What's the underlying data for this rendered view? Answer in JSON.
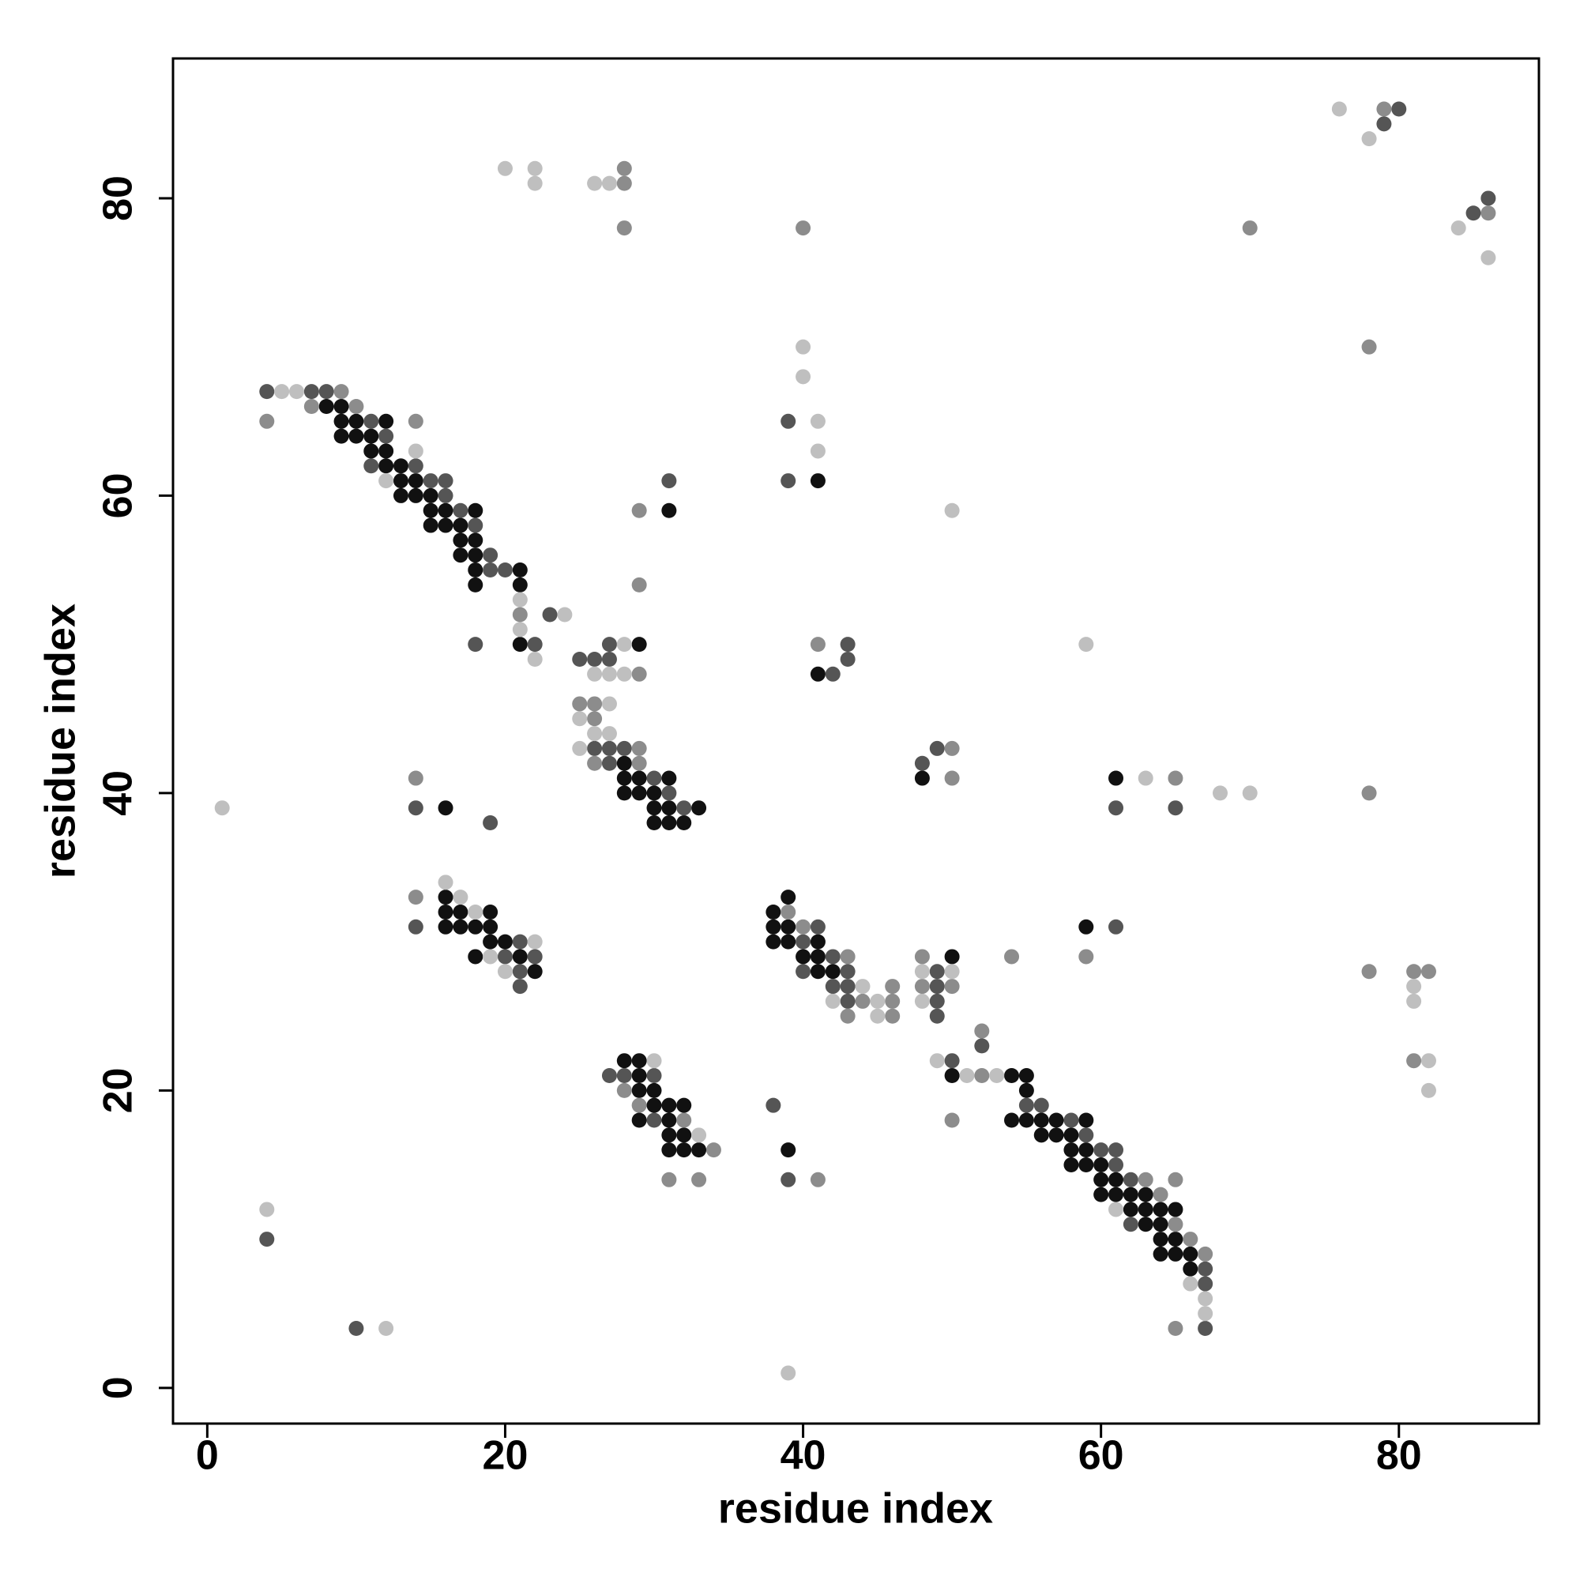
{
  "chart_data": {
    "type": "scatter",
    "xlabel": "residue index",
    "ylabel": "residue index",
    "xlim": [
      -2.3,
      89.4
    ],
    "ylim": [
      -2.4,
      89.4
    ],
    "xticks": [
      0,
      20,
      40,
      60,
      80
    ],
    "yticks": [
      0,
      20,
      40,
      60,
      80
    ],
    "grid": false,
    "series": [
      {
        "color": "#111111",
        "x": [
          8,
          9,
          9,
          10,
          12,
          9,
          10,
          11,
          11,
          12,
          12,
          13,
          13,
          14,
          41,
          13,
          14,
          15,
          15,
          16,
          18,
          31,
          15,
          16,
          17,
          17,
          18,
          17,
          18,
          18,
          21,
          18,
          21,
          21,
          29,
          41,
          28,
          28,
          29,
          31,
          48,
          61,
          28,
          29,
          30,
          30,
          31,
          33,
          16,
          30,
          31,
          32,
          16,
          39,
          16,
          17,
          19,
          38,
          16,
          17,
          18,
          19,
          38,
          39,
          59,
          19,
          20,
          38,
          39,
          41,
          18,
          21,
          40,
          41,
          50,
          22,
          41,
          42,
          28,
          29,
          29,
          50,
          54,
          55,
          29,
          30,
          55,
          30,
          31,
          32,
          29,
          31,
          54,
          55,
          56,
          57,
          59,
          31,
          32,
          56,
          57,
          58,
          31,
          32,
          33,
          39,
          58,
          59,
          58,
          59,
          60,
          60,
          61,
          60,
          61,
          62,
          63,
          62,
          63,
          64,
          65,
          63,
          64,
          64,
          65,
          64,
          65,
          66,
          66
        ],
        "y": [
          66,
          66,
          65,
          65,
          65,
          64,
          64,
          64,
          63,
          63,
          62,
          62,
          61,
          61,
          61,
          60,
          60,
          60,
          59,
          59,
          59,
          59,
          58,
          58,
          58,
          57,
          57,
          56,
          56,
          55,
          55,
          54,
          54,
          50,
          50,
          48,
          42,
          41,
          41,
          41,
          41,
          41,
          40,
          40,
          40,
          39,
          39,
          39,
          39,
          38,
          38,
          38,
          33,
          33,
          32,
          32,
          32,
          32,
          31,
          31,
          31,
          31,
          31,
          31,
          31,
          30,
          30,
          30,
          30,
          30,
          29,
          29,
          29,
          29,
          29,
          28,
          28,
          28,
          22,
          22,
          21,
          21,
          21,
          21,
          20,
          20,
          20,
          19,
          19,
          19,
          18,
          18,
          18,
          18,
          18,
          18,
          18,
          17,
          17,
          17,
          17,
          17,
          16,
          16,
          16,
          16,
          16,
          16,
          15,
          15,
          15,
          14,
          14,
          13,
          13,
          13,
          13,
          12,
          12,
          12,
          12,
          11,
          11,
          10,
          10,
          9,
          9,
          9,
          8
        ]
      },
      {
        "color": "#555555",
        "x": [
          80,
          79,
          85,
          86,
          4,
          7,
          8,
          11,
          39,
          12,
          11,
          14,
          15,
          16,
          39,
          31,
          16,
          17,
          18,
          19,
          19,
          20,
          23,
          18,
          22,
          27,
          43,
          25,
          26,
          27,
          43,
          42,
          26,
          27,
          28,
          49,
          27,
          48,
          30,
          31,
          32,
          14,
          61,
          65,
          19,
          14,
          41,
          61,
          21,
          40,
          20,
          22,
          42,
          21,
          40,
          43,
          49,
          21,
          42,
          43,
          49,
          43,
          49,
          49,
          52,
          50,
          27,
          28,
          30,
          38,
          55,
          56,
          30,
          58,
          59,
          60,
          61,
          61,
          39,
          62,
          62,
          67,
          67,
          10,
          67,
          4
        ],
        "y": [
          86,
          85,
          79,
          80,
          67,
          67,
          67,
          65,
          65,
          64,
          62,
          62,
          61,
          61,
          61,
          61,
          60,
          59,
          58,
          56,
          55,
          55,
          52,
          50,
          50,
          50,
          50,
          49,
          49,
          49,
          49,
          48,
          43,
          43,
          43,
          43,
          42,
          42,
          41,
          40,
          39,
          39,
          39,
          39,
          38,
          31,
          31,
          31,
          30,
          30,
          29,
          29,
          29,
          28,
          28,
          28,
          28,
          27,
          27,
          27,
          27,
          26,
          26,
          25,
          23,
          22,
          21,
          21,
          21,
          19,
          19,
          19,
          18,
          18,
          17,
          16,
          16,
          15,
          14,
          14,
          11,
          8,
          7,
          4,
          4,
          10
        ]
      },
      {
        "color": "#8c8c8c",
        "x": [
          79,
          28,
          28,
          86,
          28,
          40,
          70,
          78,
          9,
          7,
          10,
          4,
          14,
          29,
          29,
          21,
          41,
          29,
          25,
          26,
          26,
          29,
          50,
          26,
          29,
          14,
          50,
          65,
          78,
          14,
          39,
          40,
          43,
          48,
          54,
          59,
          78,
          81,
          82,
          46,
          48,
          50,
          44,
          46,
          43,
          46,
          52,
          81,
          52,
          28,
          29,
          32,
          50,
          34,
          31,
          33,
          41,
          63,
          65,
          64,
          65,
          66,
          67,
          65
        ],
        "y": [
          86,
          82,
          81,
          79,
          78,
          78,
          78,
          70,
          67,
          66,
          66,
          65,
          65,
          59,
          54,
          52,
          50,
          48,
          46,
          46,
          45,
          43,
          43,
          42,
          42,
          41,
          41,
          41,
          40,
          33,
          32,
          31,
          29,
          29,
          29,
          29,
          28,
          28,
          28,
          27,
          27,
          27,
          26,
          26,
          25,
          25,
          24,
          22,
          21,
          20,
          19,
          18,
          18,
          16,
          14,
          14,
          14,
          14,
          14,
          13,
          11,
          10,
          9,
          4
        ]
      },
      {
        "color": "#bfbfbf",
        "x": [
          76,
          78,
          20,
          22,
          22,
          26,
          27,
          84,
          86,
          40,
          40,
          5,
          6,
          41,
          14,
          41,
          12,
          50,
          21,
          24,
          21,
          28,
          59,
          22,
          26,
          27,
          28,
          27,
          25,
          26,
          27,
          25,
          63,
          68,
          70,
          1,
          16,
          17,
          18,
          22,
          19,
          20,
          48,
          50,
          44,
          81,
          42,
          45,
          48,
          81,
          45,
          30,
          49,
          82,
          51,
          53,
          82,
          33,
          4,
          61,
          66,
          67,
          67,
          12,
          39
        ],
        "y": [
          86,
          84,
          82,
          82,
          81,
          81,
          81,
          78,
          76,
          70,
          68,
          67,
          67,
          65,
          63,
          63,
          61,
          59,
          53,
          52,
          51,
          50,
          50,
          49,
          48,
          48,
          48,
          46,
          45,
          44,
          44,
          43,
          41,
          40,
          40,
          39,
          34,
          33,
          32,
          30,
          29,
          28,
          28,
          28,
          27,
          27,
          26,
          26,
          26,
          26,
          25,
          22,
          22,
          22,
          21,
          21,
          20,
          17,
          12,
          12,
          7,
          6,
          5,
          4,
          1
        ]
      }
    ]
  }
}
